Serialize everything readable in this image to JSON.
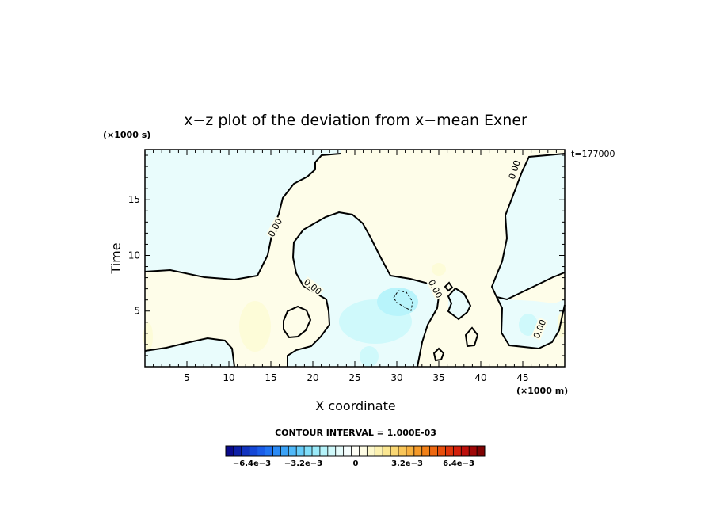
{
  "chart_data": {
    "type": "contour",
    "title": "x−z plot of the deviation from x−mean Exner",
    "xlabel": "X coordinate",
    "ylabel": "Time",
    "x_unit": "(×1000 m)",
    "y_unit": "(×1000 s)",
    "time_label": "t=177000",
    "xlim": [
      0,
      50
    ],
    "ylim": [
      0,
      19.5
    ],
    "x_ticks": [
      5,
      10,
      15,
      20,
      25,
      30,
      35,
      40,
      45
    ],
    "y_ticks": [
      5,
      10,
      15
    ],
    "contour_interval_label": "CONTOUR INTERVAL = 1.000E-03",
    "contour_labels": [
      {
        "text": "0.00",
        "x": 15.5,
        "y": 12.5,
        "angle": -62
      },
      {
        "text": "0.00",
        "x": 20.0,
        "y": 7.2,
        "angle": 38
      },
      {
        "text": "0.00",
        "x": 34.6,
        "y": 7.0,
        "angle": 62
      },
      {
        "text": "0.00",
        "x": 44.0,
        "y": 17.7,
        "angle": -72
      },
      {
        "text": "0.00",
        "x": 47.0,
        "y": 3.4,
        "angle": -68
      }
    ],
    "colorbar": {
      "ticks": [
        "−6.4e−3",
        "−3.2e−3",
        "0",
        "3.2e−3",
        "6.4e−3"
      ],
      "colors": [
        "#0a0a8c",
        "#0d1fa6",
        "#1133bf",
        "#1547d6",
        "#1a5ce8",
        "#2073f2",
        "#2a8af5",
        "#3aa2f7",
        "#4fb8f8",
        "#66ccf9",
        "#80def9",
        "#9aeaf9",
        "#b5f3fa",
        "#cff9fb",
        "#e6fcfc",
        "#f6fefe",
        "#fefef6",
        "#fefce4",
        "#fdf8cc",
        "#fcf1b0",
        "#fbe792",
        "#fad874",
        "#f9c659",
        "#f7b13f",
        "#f59a29",
        "#f28118",
        "#ee6810",
        "#e84e0c",
        "#df350b",
        "#d21f0b",
        "#bd0f0b",
        "#a00707",
        "#800303"
      ]
    }
  }
}
